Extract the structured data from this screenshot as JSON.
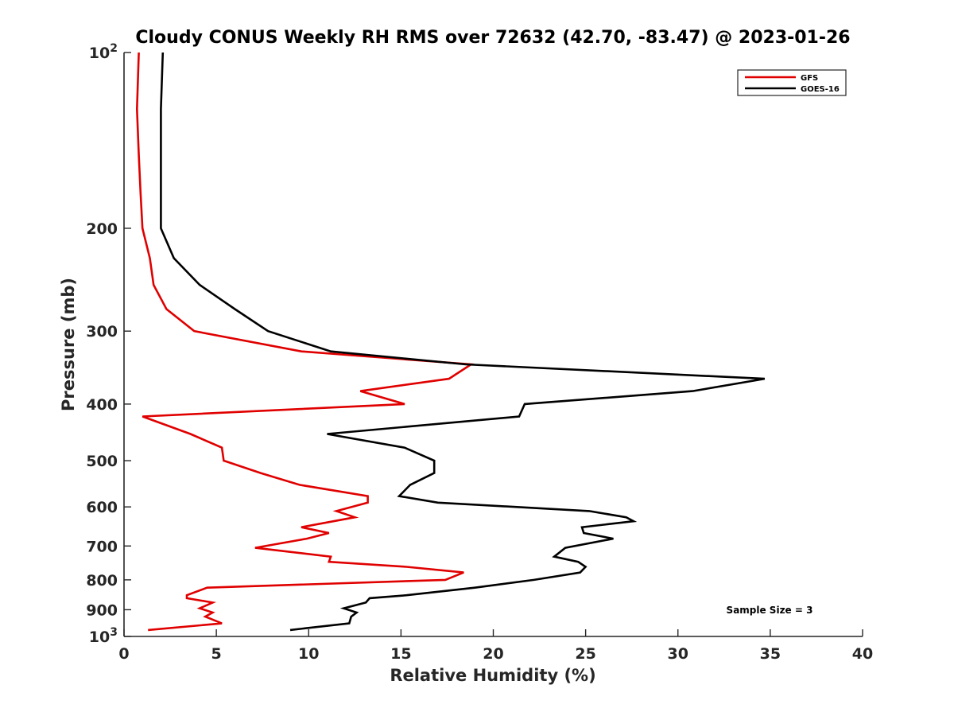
{
  "chart_data": {
    "type": "line",
    "title": "Cloudy CONUS Weekly RH RMS over 72632 (42.70, -83.47) @ 2023-01-26",
    "xlabel": "Relative Humidity (%)",
    "ylabel": "Pressure (mb)",
    "xlim": [
      0,
      40
    ],
    "ylim": [
      100,
      1000
    ],
    "y_scale": "log",
    "y_reversed": true,
    "grid": false,
    "legend_position": "top-right",
    "x_ticks": [
      0,
      5,
      10,
      15,
      20,
      25,
      30,
      35,
      40
    ],
    "y_ticks": [
      {
        "value": 100,
        "base": "10",
        "exp": "2"
      },
      {
        "value": 200,
        "label": "200"
      },
      {
        "value": 300,
        "label": "300"
      },
      {
        "value": 400,
        "label": "400"
      },
      {
        "value": 500,
        "label": "500"
      },
      {
        "value": 600,
        "label": "600"
      },
      {
        "value": 700,
        "label": "700"
      },
      {
        "value": 800,
        "label": "800"
      },
      {
        "value": 900,
        "label": "900"
      },
      {
        "value": 1000,
        "base": "10",
        "exp": "3"
      }
    ],
    "annotation": "Sample Size = 3",
    "series": [
      {
        "name": "GFS",
        "color": "#e00000",
        "points": [
          [
            0.8,
            100
          ],
          [
            0.7,
            125
          ],
          [
            0.8,
            150
          ],
          [
            0.9,
            175
          ],
          [
            1.0,
            200
          ],
          [
            1.4,
            225
          ],
          [
            1.6,
            250
          ],
          [
            2.3,
            275
          ],
          [
            3.8,
            300
          ],
          [
            9.6,
            325
          ],
          [
            18.8,
            342
          ],
          [
            17.6,
            362
          ],
          [
            12.8,
            380
          ],
          [
            15.2,
            400
          ],
          [
            1.0,
            420
          ],
          [
            3.6,
            450
          ],
          [
            5.3,
            475
          ],
          [
            5.4,
            500
          ],
          [
            7.4,
            525
          ],
          [
            9.5,
            550
          ],
          [
            13.2,
            575
          ],
          [
            13.2,
            590
          ],
          [
            11.5,
            610
          ],
          [
            12.5,
            625
          ],
          [
            9.6,
            650
          ],
          [
            11.1,
            665
          ],
          [
            9.9,
            680
          ],
          [
            7.1,
            705
          ],
          [
            11.2,
            730
          ],
          [
            11.1,
            745
          ],
          [
            15.3,
            760
          ],
          [
            18.4,
            777
          ],
          [
            17.4,
            800
          ],
          [
            4.5,
            825
          ],
          [
            3.4,
            850
          ],
          [
            3.4,
            860
          ],
          [
            4.8,
            875
          ],
          [
            4.1,
            895
          ],
          [
            4.8,
            910
          ],
          [
            4.4,
            925
          ],
          [
            5.3,
            950
          ],
          [
            1.3,
            975
          ]
        ]
      },
      {
        "name": "GOES-16",
        "color": "#000000",
        "points": [
          [
            2.1,
            100
          ],
          [
            2.0,
            125
          ],
          [
            2.0,
            150
          ],
          [
            2.0,
            175
          ],
          [
            2.0,
            200
          ],
          [
            2.7,
            225
          ],
          [
            4.1,
            250
          ],
          [
            6.0,
            275
          ],
          [
            7.8,
            300
          ],
          [
            11.2,
            325
          ],
          [
            18.5,
            342
          ],
          [
            34.7,
            362
          ],
          [
            30.8,
            380
          ],
          [
            21.7,
            400
          ],
          [
            21.4,
            420
          ],
          [
            11.0,
            450
          ],
          [
            15.2,
            475
          ],
          [
            16.8,
            500
          ],
          [
            16.8,
            525
          ],
          [
            15.5,
            550
          ],
          [
            14.9,
            575
          ],
          [
            17.0,
            590
          ],
          [
            25.2,
            610
          ],
          [
            27.2,
            625
          ],
          [
            27.6,
            635
          ],
          [
            24.8,
            650
          ],
          [
            24.9,
            665
          ],
          [
            26.5,
            680
          ],
          [
            23.9,
            705
          ],
          [
            23.3,
            730
          ],
          [
            24.6,
            745
          ],
          [
            25.0,
            760
          ],
          [
            24.7,
            777
          ],
          [
            22.2,
            800
          ],
          [
            19.0,
            825
          ],
          [
            15.3,
            850
          ],
          [
            13.3,
            860
          ],
          [
            13.1,
            875
          ],
          [
            11.9,
            895
          ],
          [
            12.6,
            910
          ],
          [
            12.3,
            925
          ],
          [
            12.2,
            950
          ],
          [
            9.0,
            975
          ]
        ]
      }
    ]
  }
}
